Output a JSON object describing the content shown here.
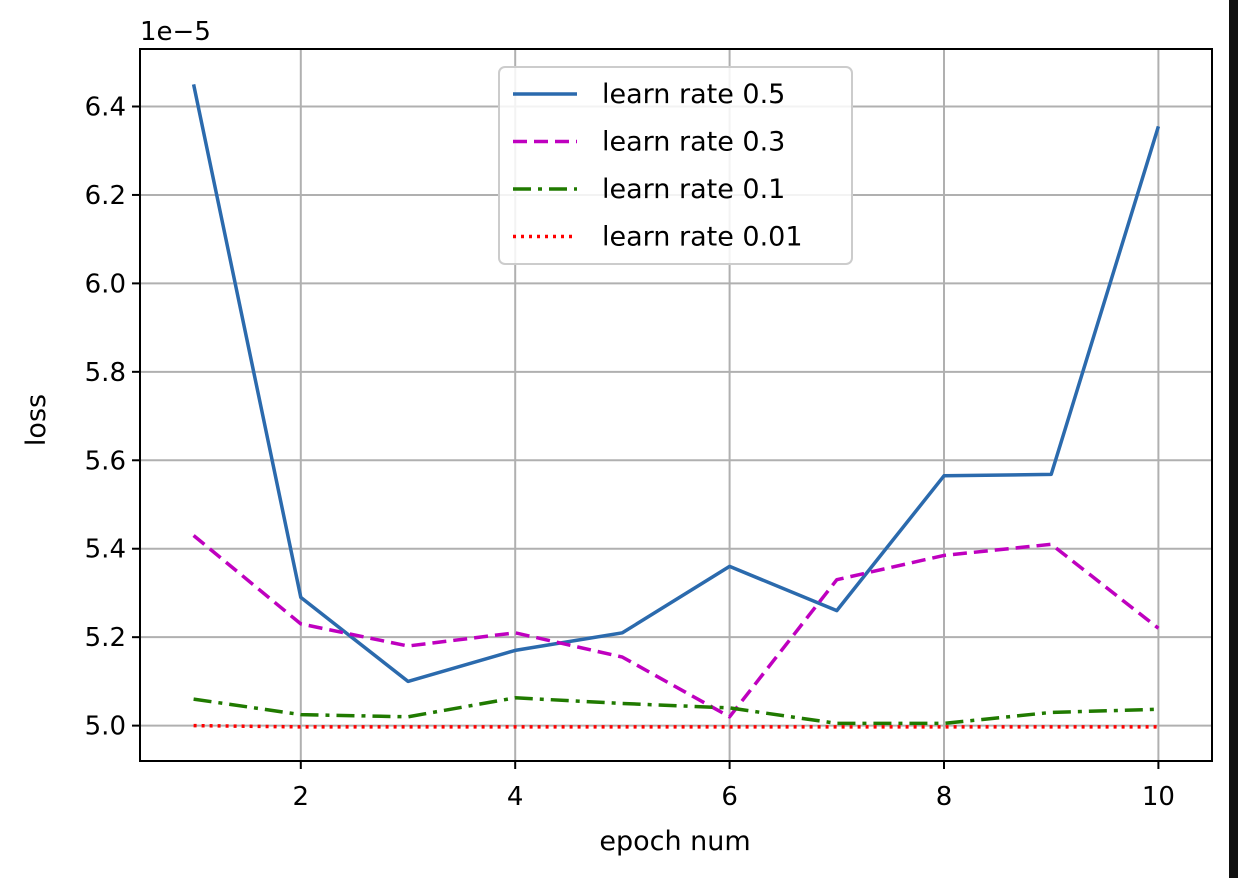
{
  "chart_data": {
    "type": "line",
    "title": "",
    "xlabel": "epoch num",
    "ylabel": "loss",
    "y_offset_label": "1e−5",
    "xlim": [
      0.5,
      10.5
    ],
    "ylim": [
      4.92,
      6.53
    ],
    "x_ticks": [
      2,
      4,
      6,
      8,
      10
    ],
    "x_tick_labels": [
      "2",
      "4",
      "6",
      "8",
      "10"
    ],
    "y_ticks": [
      5.0,
      5.2,
      5.4,
      5.6,
      5.8,
      6.0,
      6.2,
      6.4
    ],
    "y_tick_labels": [
      "5.0",
      "5.2",
      "5.4",
      "5.6",
      "5.8",
      "6.0",
      "6.2",
      "6.4"
    ],
    "grid": true,
    "legend_position": "top-center",
    "x": [
      1,
      2,
      3,
      4,
      5,
      6,
      7,
      8,
      9,
      10
    ],
    "series": [
      {
        "name": "learn rate 0.5",
        "color": "#2b6aad",
        "style": "solid",
        "values": [
          6.45,
          5.29,
          5.1,
          5.17,
          5.21,
          5.36,
          5.26,
          5.565,
          5.568,
          6.355
        ]
      },
      {
        "name": "learn rate 0.3",
        "color": "#bf00bf",
        "style": "dashed",
        "values": [
          5.43,
          5.23,
          5.18,
          5.21,
          5.155,
          5.02,
          5.33,
          5.385,
          5.41,
          5.22
        ]
      },
      {
        "name": "learn rate 0.1",
        "color": "#207a00",
        "style": "dashdot",
        "values": [
          5.06,
          5.025,
          5.02,
          5.063,
          5.05,
          5.04,
          5.005,
          5.005,
          5.03,
          5.037
        ]
      },
      {
        "name": "learn rate 0.01",
        "color": "#ff0000",
        "style": "dotted",
        "values": [
          5.0,
          4.997,
          4.997,
          4.997,
          4.997,
          4.997,
          4.997,
          4.997,
          4.997,
          4.997
        ]
      }
    ]
  }
}
